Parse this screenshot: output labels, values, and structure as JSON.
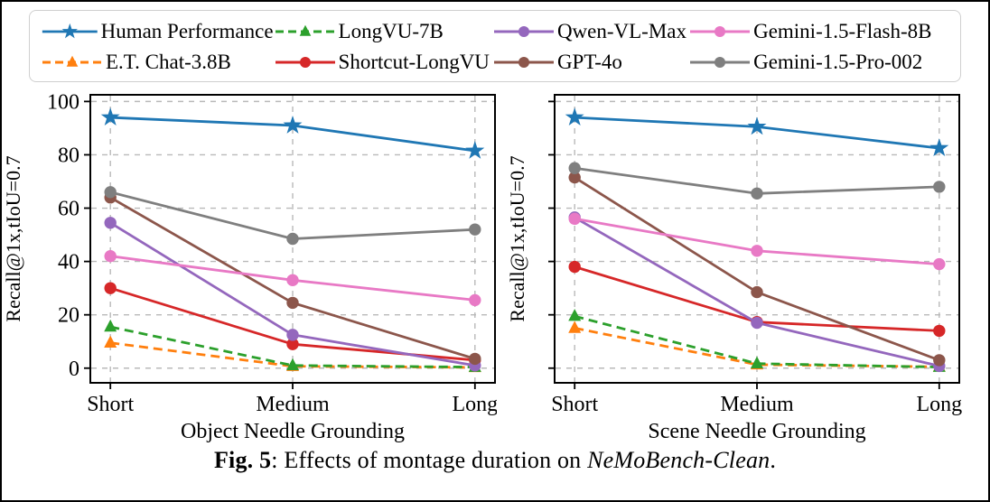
{
  "caption": {
    "label": "Fig. 5",
    "sep": ": ",
    "body": "Effects of montage duration on ",
    "emph": "NeMoBench-Clean",
    "end": "."
  },
  "legend": {
    "position": "top",
    "columns": 4,
    "rows": 2,
    "entries": [
      "Human Performance",
      "LongVU-7B",
      "Qwen-VL-Max",
      "Gemini-1.5-Flash-8B",
      "E.T. Chat-3.8B",
      "Shortcut-LongVU",
      "GPT-4o",
      "Gemini-1.5-Pro-002"
    ]
  },
  "chart_data": [
    {
      "type": "line",
      "xlabel": "Object Needle Grounding",
      "ylabel": "Recall@1x,tIoU=0.7",
      "categories": [
        "Short",
        "Medium",
        "Long"
      ],
      "ylim": [
        0,
        100
      ],
      "yticks": [
        0,
        20,
        40,
        60,
        80,
        100
      ],
      "show_ytick_labels": true,
      "grid": true,
      "series": [
        {
          "name": "E.T. Chat-3.8B",
          "color": "#ff7f0e",
          "marker": "triangle",
          "line_style": "dashed",
          "values": [
            9.5,
            0.7,
            0.3
          ]
        },
        {
          "name": "LongVU-7B",
          "color": "#2ca02c",
          "marker": "triangle",
          "line_style": "dashed",
          "values": [
            15.5,
            1,
            0.4
          ]
        },
        {
          "name": "Shortcut-LongVU",
          "color": "#d62728",
          "marker": "circle",
          "line_style": "solid",
          "values": [
            30,
            9,
            3
          ]
        },
        {
          "name": "Qwen-VL-Max",
          "color": "#9467bd",
          "marker": "circle",
          "line_style": "solid",
          "values": [
            54.5,
            12.5,
            1
          ]
        },
        {
          "name": "GPT-4o",
          "color": "#8c564b",
          "marker": "circle",
          "line_style": "solid",
          "values": [
            64,
            24.5,
            3.5
          ]
        },
        {
          "name": "Gemini-1.5-Flash-8B",
          "color": "#e879c5",
          "marker": "circle",
          "line_style": "solid",
          "values": [
            42,
            33,
            25.5
          ]
        },
        {
          "name": "Gemini-1.5-Pro-002",
          "color": "#7f7f7f",
          "marker": "circle",
          "line_style": "solid",
          "values": [
            66,
            48.5,
            52
          ]
        },
        {
          "name": "Human Performance",
          "color": "#1f77b4",
          "marker": "star",
          "line_style": "solid",
          "values": [
            94,
            91,
            81.5
          ]
        }
      ]
    },
    {
      "type": "line",
      "xlabel": "Scene Needle Grounding",
      "ylabel": "Recall@1x,tIoU=0.7",
      "categories": [
        "Short",
        "Medium",
        "Long"
      ],
      "ylim": [
        0,
        100
      ],
      "yticks": [
        0,
        20,
        40,
        60,
        80,
        100
      ],
      "show_ytick_labels": false,
      "grid": true,
      "series": [
        {
          "name": "E.T. Chat-3.8B",
          "color": "#ff7f0e",
          "marker": "triangle",
          "line_style": "dashed",
          "values": [
            15,
            1.3,
            0.5
          ]
        },
        {
          "name": "LongVU-7B",
          "color": "#2ca02c",
          "marker": "triangle",
          "line_style": "dashed",
          "values": [
            19.5,
            1.7,
            0.4
          ]
        },
        {
          "name": "Shortcut-LongVU",
          "color": "#d62728",
          "marker": "circle",
          "line_style": "solid",
          "values": [
            38,
            17.3,
            14
          ]
        },
        {
          "name": "Qwen-VL-Max",
          "color": "#9467bd",
          "marker": "circle",
          "line_style": "solid",
          "values": [
            56.5,
            17,
            0.8
          ]
        },
        {
          "name": "GPT-4o",
          "color": "#8c564b",
          "marker": "circle",
          "line_style": "solid",
          "values": [
            71.5,
            28.5,
            3
          ]
        },
        {
          "name": "Gemini-1.5-Flash-8B",
          "color": "#e879c5",
          "marker": "circle",
          "line_style": "solid",
          "values": [
            56,
            44,
            39
          ]
        },
        {
          "name": "Gemini-1.5-Pro-002",
          "color": "#7f7f7f",
          "marker": "circle",
          "line_style": "solid",
          "values": [
            75,
            65.5,
            68
          ]
        },
        {
          "name": "Human Performance",
          "color": "#1f77b4",
          "marker": "star",
          "line_style": "solid",
          "values": [
            94,
            90.5,
            82.5
          ]
        }
      ]
    }
  ]
}
